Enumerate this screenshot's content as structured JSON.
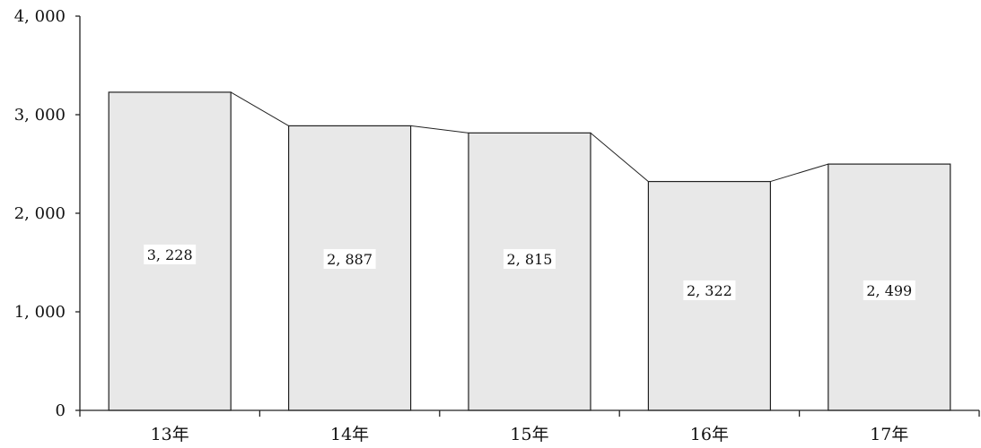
{
  "chart_data": {
    "type": "bar",
    "categories": [
      "13年",
      "14年",
      "15年",
      "16年",
      "17年"
    ],
    "values": [
      3228,
      2887,
      2815,
      2322,
      2499
    ],
    "data_labels": [
      "3, 228",
      "2, 887",
      "2, 815",
      "2, 322",
      "2, 499"
    ],
    "yticks": [
      0,
      1000,
      2000,
      3000,
      4000
    ],
    "ytick_labels": [
      "0",
      "1, 000",
      "2, 000",
      "3, 000",
      "4, 000"
    ],
    "ylim": [
      0,
      4000
    ],
    "title": "",
    "xlabel": "",
    "ylabel": "",
    "grid": false,
    "legend": "none",
    "connector_lines": true,
    "colors": {
      "bar_fill": "#e8e8e8",
      "stroke": "#222222",
      "label_bg": "#ffffff"
    }
  }
}
